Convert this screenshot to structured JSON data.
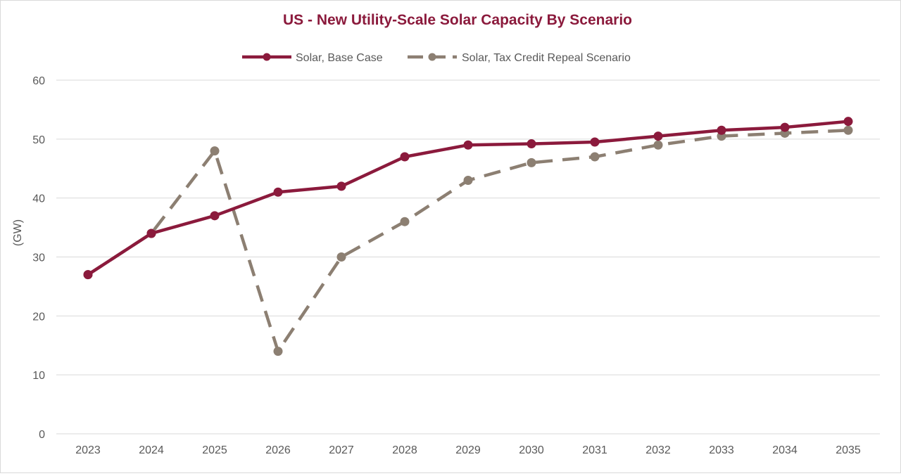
{
  "chart_data": {
    "type": "line",
    "title": "US - New Utility-Scale Solar Capacity By Scenario",
    "xlabel": "",
    "ylabel": "(GW)",
    "ylim": [
      0,
      60
    ],
    "yticks": [
      "0",
      "10",
      "20",
      "30",
      "40",
      "50",
      "60"
    ],
    "categories": [
      "2023",
      "2024",
      "2025",
      "2026",
      "2027",
      "2028",
      "2029",
      "2030",
      "2031",
      "2032",
      "2033",
      "2034",
      "2035"
    ],
    "grid": true,
    "legend_position": "top-center",
    "series": [
      {
        "name": "Solar, Base Case",
        "color": "#8b1a3c",
        "style": "solid",
        "values": [
          27,
          34,
          37,
          41,
          42,
          47,
          49,
          49.2,
          49.5,
          50.5,
          51.5,
          52,
          53
        ]
      },
      {
        "name": "Solar, Tax Credit Repeal Scenario",
        "color": "#8c7f72",
        "style": "dashed",
        "values": [
          27,
          34,
          48,
          14,
          30,
          36,
          43,
          46,
          47,
          49,
          50.5,
          51,
          51.5
        ]
      }
    ]
  },
  "colors": {
    "title": "#8b1a3c",
    "axis_text": "#595959",
    "grid": "#d9d9d9"
  }
}
